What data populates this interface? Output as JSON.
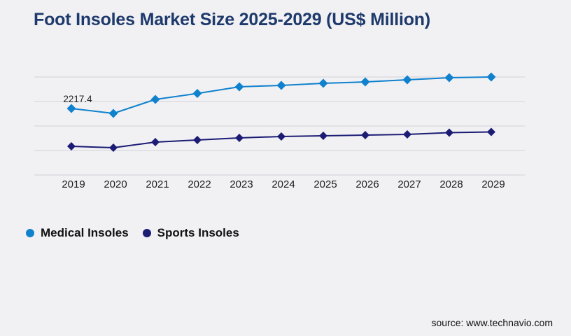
{
  "header": {
    "title": "Foot Insoles Market Size 2025-2029 (US$ Million)",
    "title_color": "#1e3a6c"
  },
  "footer": {
    "source": "source: www.technavio.com",
    "color": "#111111"
  },
  "colors": {
    "background": "#f1f1f4",
    "gridline": "#d4d4d8",
    "axis_text": "#1a1a1a",
    "annotation_text": "#262626"
  },
  "legend": {
    "position": "bottom-left",
    "items": [
      {
        "label": "Medical Insoles",
        "color": "#0f81cd"
      },
      {
        "label": "Sports Insoles",
        "color": "#1c1c75"
      }
    ]
  },
  "chart_data": {
    "type": "line",
    "title": "Foot Insoles Market Size 2025-2029 (US$ Million)",
    "xlabel": "",
    "ylabel": "",
    "x": [
      "2019",
      "2020",
      "2021",
      "2022",
      "2023",
      "2024",
      "2025",
      "2026",
      "2027",
      "2028",
      "2029"
    ],
    "series": [
      {
        "name": "Medical Insoles",
        "color": "#0f81cd",
        "marker": "diamond",
        "values": [
          2217.4,
          2054,
          2521,
          2719,
          2941,
          2988,
          3058,
          3104,
          3174,
          3244,
          3268
        ]
      },
      {
        "name": "Sports Insoles",
        "color": "#1c1c75",
        "marker": "diamond",
        "values": [
          957,
          910,
          1097,
          1167,
          1237,
          1284,
          1307,
          1330,
          1354,
          1412,
          1435
        ]
      }
    ],
    "annotations": [
      {
        "series": "Medical Insoles",
        "x": "2019",
        "text": "2217.4"
      }
    ],
    "ylim": [
      0,
      3268
    ],
    "grid": true,
    "gridline_count": 5,
    "y_axis_labels_visible": false,
    "legend_position": "bottom-left"
  }
}
